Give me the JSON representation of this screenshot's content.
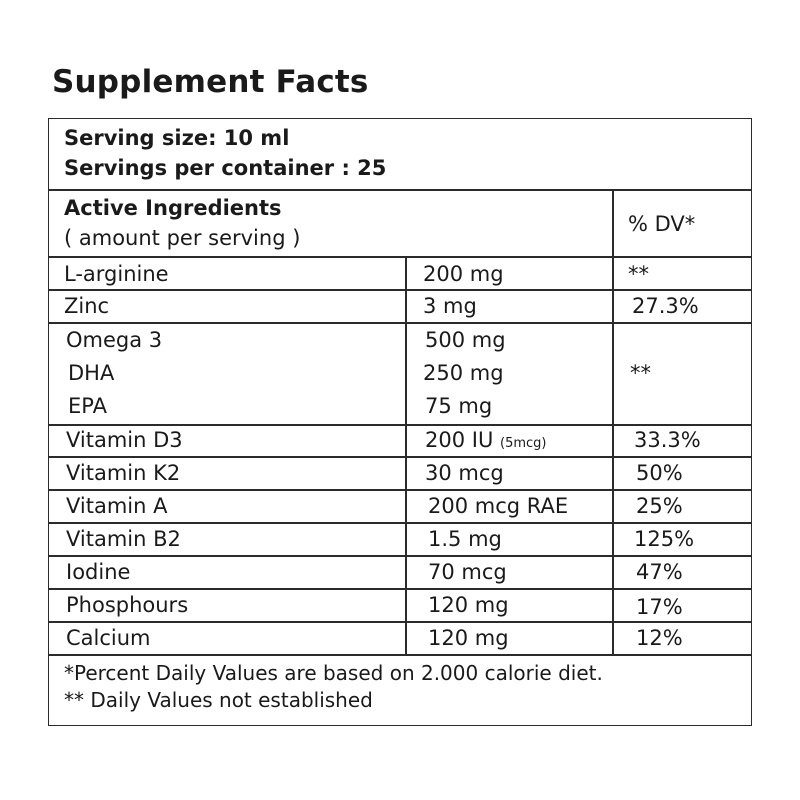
{
  "title": "Supplement Facts",
  "serving": {
    "size": "Serving size: 10 ml",
    "per_container": "Servings per container : 25"
  },
  "header": {
    "col1_line1": "Active Ingredients",
    "col1_line2": "( amount per serving )",
    "col3": "% DV*"
  },
  "rows": [
    {
      "name": "L-arginine",
      "amount": "200 mg",
      "dv": "**"
    },
    {
      "name": "Zinc",
      "amount": "3 mg",
      "dv": "27.3%"
    },
    {
      "names": [
        "Omega 3",
        "DHA",
        "EPA"
      ],
      "amounts": [
        "500 mg",
        "250 mg",
        "75 mg"
      ],
      "dv": "**"
    },
    {
      "name": "Vitamin D3",
      "amount": "200 IU",
      "amount_note": "(5mcg)",
      "dv": "33.3%"
    },
    {
      "name": "Vitamin K2",
      "amount": "30 mcg",
      "dv": "50%"
    },
    {
      "name": "Vitamin A",
      "amount": "200 mcg RAE",
      "dv": "25%"
    },
    {
      "name": "Vitamin B2",
      "amount": "1.5 mg",
      "dv": "125%"
    },
    {
      "name": "Iodine",
      "amount": "70 mcg",
      "dv": "47%"
    },
    {
      "name": "Phosphours",
      "amount": "120 mg",
      "dv": "17%"
    },
    {
      "name": "Calcium",
      "amount": "120 mg",
      "dv": "12%"
    }
  ],
  "footnotes": {
    "line1": "*Percent Daily Values are based on 2.000 calorie diet.",
    "line2": "** Daily Values  not established"
  }
}
